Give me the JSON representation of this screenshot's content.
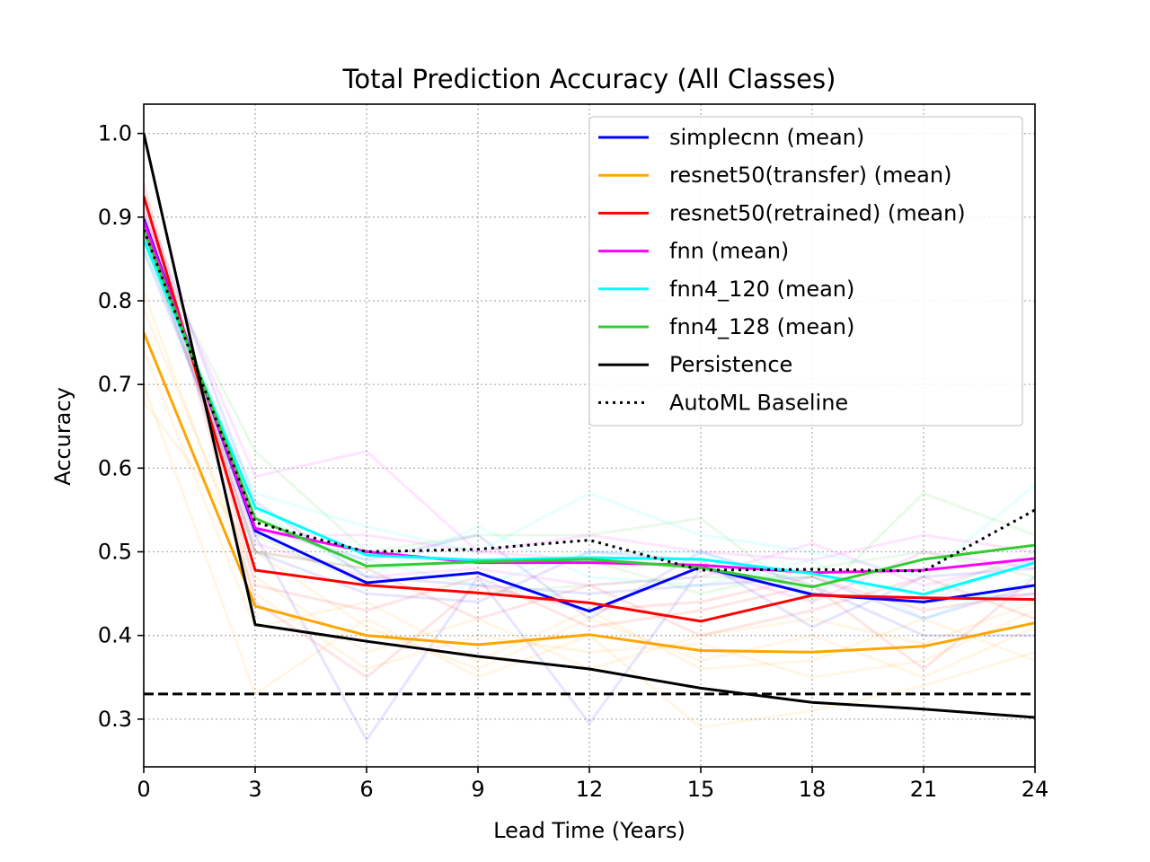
{
  "chart_data": {
    "type": "line",
    "title": "Total Prediction Accuracy (All Classes)",
    "xlabel": "Lead Time (Years)",
    "ylabel": "Accuracy",
    "xlim": [
      0,
      24
    ],
    "ylim": [
      0.243,
      1.035
    ],
    "x": [
      0,
      3,
      6,
      9,
      12,
      15,
      18,
      21,
      24
    ],
    "x_tick_labels": [
      "0",
      "3",
      "6",
      "9",
      "12",
      "15",
      "18",
      "21",
      "24"
    ],
    "y_ticks": [
      0.3,
      0.4,
      0.5,
      0.6,
      0.7,
      0.8,
      0.9,
      1.0
    ],
    "y_tick_labels": [
      "0.3",
      "0.4",
      "0.5",
      "0.6",
      "0.7",
      "0.8",
      "0.9",
      "1.0"
    ],
    "grid": true,
    "legend_position": "upper-right",
    "series": [
      {
        "name": "simplecnn (mean)",
        "color": "#0000ff",
        "style": "solid",
        "values": [
          0.898,
          0.525,
          0.463,
          0.475,
          0.429,
          0.482,
          0.449,
          0.44,
          0.46
        ]
      },
      {
        "name": "resnet50(transfer) (mean)",
        "color": "#ffa500",
        "style": "solid",
        "values": [
          0.762,
          0.435,
          0.4,
          0.389,
          0.401,
          0.382,
          0.38,
          0.387,
          0.415
        ]
      },
      {
        "name": "resnet50(retrained) (mean)",
        "color": "#ff0000",
        "style": "solid",
        "values": [
          0.925,
          0.478,
          0.46,
          0.451,
          0.439,
          0.417,
          0.448,
          0.445,
          0.443
        ]
      },
      {
        "name": "fnn (mean)",
        "color": "#ff00ff",
        "style": "solid",
        "values": [
          0.895,
          0.528,
          0.5,
          0.487,
          0.487,
          0.484,
          0.475,
          0.478,
          0.492
        ]
      },
      {
        "name": "fnn4_120 (mean)",
        "color": "#00ffff",
        "style": "solid",
        "values": [
          0.873,
          0.553,
          0.496,
          0.49,
          0.493,
          0.491,
          0.474,
          0.449,
          0.487
        ]
      },
      {
        "name": "fnn4_128 (mean)",
        "color": "#33cc33",
        "style": "solid",
        "values": [
          0.885,
          0.54,
          0.483,
          0.488,
          0.491,
          0.481,
          0.458,
          0.491,
          0.508
        ]
      },
      {
        "name": "Persistence",
        "color": "#000000",
        "style": "solid",
        "values": [
          1.0,
          0.413,
          0.393,
          0.375,
          0.36,
          0.337,
          0.32,
          0.312,
          0.302
        ]
      },
      {
        "name": "AutoML Baseline",
        "color": "#000000",
        "style": "dotted",
        "values": [
          0.885,
          0.535,
          0.5,
          0.503,
          0.514,
          0.478,
          0.479,
          0.477,
          0.55
        ]
      }
    ],
    "reference_line": {
      "y": 0.33,
      "color": "#000000",
      "style": "dashed"
    },
    "faint_runs": [
      {
        "color": "#0000ff",
        "values": [
          0.9,
          0.52,
          0.275,
          0.47,
          0.295,
          0.48,
          0.45,
          0.44,
          0.45
        ]
      },
      {
        "color": "#0000ff",
        "values": [
          0.92,
          0.56,
          0.47,
          0.46,
          0.45,
          0.46,
          0.47,
          0.42,
          0.46
        ]
      },
      {
        "color": "#0000ff",
        "values": [
          0.88,
          0.5,
          0.45,
          0.44,
          0.5,
          0.49,
          0.41,
          0.47,
          0.48
        ]
      },
      {
        "color": "#0000ff",
        "values": [
          0.86,
          0.53,
          0.49,
          0.52,
          0.42,
          0.5,
          0.46,
          0.4,
          0.4
        ]
      },
      {
        "color": "#ffa500",
        "values": [
          0.7,
          0.33,
          0.42,
          0.35,
          0.4,
          0.29,
          0.31,
          0.34,
          0.38
        ]
      },
      {
        "color": "#ffa500",
        "values": [
          0.79,
          0.47,
          0.38,
          0.42,
          0.36,
          0.4,
          0.42,
          0.39,
          0.44
        ]
      },
      {
        "color": "#ffa500",
        "values": [
          0.74,
          0.41,
          0.44,
          0.37,
          0.43,
          0.36,
          0.37,
          0.42,
          0.37
        ]
      },
      {
        "color": "#ffa500",
        "values": [
          0.81,
          0.45,
          0.36,
          0.4,
          0.38,
          0.39,
          0.35,
          0.37,
          0.43
        ]
      },
      {
        "color": "#ffa500",
        "values": [
          0.68,
          0.5,
          0.41,
          0.36,
          0.42,
          0.37,
          0.4,
          0.35,
          0.41
        ]
      },
      {
        "color": "#ff0000",
        "values": [
          0.94,
          0.46,
          0.43,
          0.47,
          0.41,
          0.43,
          0.46,
          0.36,
          0.47
        ]
      },
      {
        "color": "#ff0000",
        "values": [
          0.91,
          0.5,
          0.48,
          0.42,
          0.46,
          0.4,
          0.43,
          0.47,
          0.42
        ]
      },
      {
        "color": "#ff0000",
        "values": [
          0.93,
          0.44,
          0.35,
          0.46,
          0.43,
          0.44,
          0.47,
          0.43,
          0.45
        ]
      },
      {
        "color": "#ff00ff",
        "values": [
          0.9,
          0.59,
          0.62,
          0.5,
          0.52,
          0.5,
          0.49,
          0.52,
          0.5
        ]
      },
      {
        "color": "#ff00ff",
        "values": [
          0.88,
          0.51,
          0.47,
          0.48,
          0.46,
          0.47,
          0.51,
          0.46,
          0.49
        ]
      },
      {
        "color": "#ff00ff",
        "values": [
          0.91,
          0.52,
          0.52,
          0.5,
          0.49,
          0.48,
          0.44,
          0.5,
          0.48
        ]
      },
      {
        "color": "#00ffff",
        "values": [
          0.86,
          0.57,
          0.53,
          0.5,
          0.57,
          0.52,
          0.5,
          0.47,
          0.58
        ]
      },
      {
        "color": "#00ffff",
        "values": [
          0.89,
          0.55,
          0.47,
          0.53,
          0.47,
          0.46,
          0.49,
          0.42,
          0.47
        ]
      },
      {
        "color": "#00ffff",
        "values": [
          0.87,
          0.54,
          0.49,
          0.46,
          0.5,
          0.5,
          0.45,
          0.44,
          0.49
        ]
      },
      {
        "color": "#33cc33",
        "values": [
          0.88,
          0.62,
          0.5,
          0.52,
          0.52,
          0.54,
          0.44,
          0.57,
          0.52
        ]
      },
      {
        "color": "#33cc33",
        "values": [
          0.87,
          0.52,
          0.46,
          0.45,
          0.46,
          0.47,
          0.47,
          0.45,
          0.5
        ]
      },
      {
        "color": "#33cc33",
        "values": [
          0.9,
          0.5,
          0.48,
          0.49,
          0.49,
          0.45,
          0.48,
          0.5,
          0.47
        ]
      }
    ]
  }
}
